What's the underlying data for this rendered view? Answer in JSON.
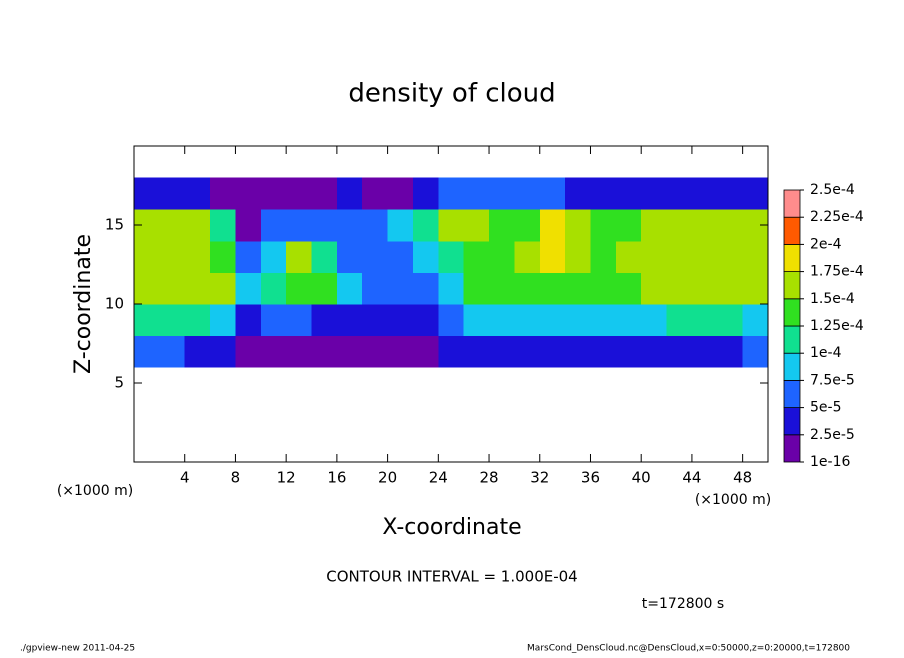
{
  "chart_data": {
    "type": "heatmap",
    "title": "density of cloud",
    "xlabel": "X-coordinate",
    "ylabel": "Z-coordinate",
    "xunit": "(×1000 m)",
    "yunit": "(×1000 m)",
    "annotation": "CONTOUR INTERVAL = 1.000E-04",
    "time_label": "t=172800 s",
    "footer_left": "./gpview-new  2011-04-25",
    "footer_right": "MarsCond_DensCloud.nc@DensCloud,x=0:50000,z=0:20000,t=172800",
    "xlim": [
      0,
      50
    ],
    "ylim": [
      0,
      20
    ],
    "xticks": [
      4,
      8,
      12,
      16,
      20,
      24,
      28,
      32,
      36,
      40,
      44,
      48
    ],
    "yticks": [
      5,
      10,
      15
    ],
    "x": [
      1,
      3,
      5,
      7,
      9,
      11,
      13,
      15,
      17,
      19,
      21,
      23,
      25,
      27,
      29,
      31,
      33,
      35,
      37,
      39,
      41,
      43,
      45,
      47,
      49
    ],
    "y": [
      7,
      9,
      11,
      13,
      15,
      17
    ],
    "z_values": [
      [
        5e-05,
        5e-05,
        4e-05,
        4e-05,
        2e-05,
        2e-05,
        1e-05,
        1e-05,
        1e-05,
        1e-05,
        1e-05,
        2e-05,
        3e-05,
        4e-05,
        4e-05,
        4e-05,
        4e-05,
        4e-05,
        4e-05,
        4e-05,
        4e-05,
        4e-05,
        4e-05,
        4e-05,
        5e-05
      ],
      [
        0.00011,
        0.000105,
        0.0001,
        9e-05,
        3e-05,
        6e-05,
        5e-05,
        4e-05,
        3e-05,
        4e-05,
        3e-05,
        3e-05,
        6e-05,
        9e-05,
        9e-05,
        8e-05,
        8e-05,
        9e-05,
        9e-05,
        9e-05,
        9e-05,
        0.0001,
        0.0001,
        0.0001,
        9e-05
      ],
      [
        0.00016,
        0.00016,
        0.00016,
        0.00015,
        8e-05,
        0.00012,
        0.00014,
        0.00013,
        8e-05,
        5e-05,
        5e-05,
        6e-05,
        9e-05,
        0.00013,
        0.00014,
        0.00014,
        0.00014,
        0.00014,
        0.00014,
        0.00014,
        0.00015,
        0.00016,
        0.00016,
        0.00016,
        0.00015
      ],
      [
        0.000165,
        0.000165,
        0.00016,
        0.00014,
        5e-05,
        8e-05,
        0.00016,
        0.00012,
        6e-05,
        6e-05,
        7e-05,
        8e-05,
        0.00011,
        0.00014,
        0.000145,
        0.00015,
        0.00018,
        0.00015,
        0.000145,
        0.00015,
        0.00016,
        0.000165,
        0.00017,
        0.000165,
        0.00016
      ],
      [
        0.00016,
        0.00016,
        0.00015,
        0.00012,
        2e-05,
        5e-05,
        6e-05,
        5e-05,
        7e-05,
        6e-05,
        8e-05,
        0.00012,
        0.00015,
        0.00015,
        0.00014,
        0.00014,
        0.00019,
        0.00015,
        0.00013,
        0.00014,
        0.00015,
        0.00016,
        0.00016,
        0.00016,
        0.00015
      ],
      [
        4e-05,
        4e-05,
        3e-05,
        2e-05,
        1e-05,
        1e-05,
        1e-05,
        2e-05,
        3e-05,
        2e-05,
        2e-05,
        3e-05,
        5e-05,
        7e-05,
        6e-05,
        5e-05,
        5e-05,
        4e-05,
        4e-05,
        4e-05,
        4e-05,
        4e-05,
        4e-05,
        4e-05,
        4e-05
      ]
    ],
    "colorbar_ticks": [
      {
        "value": 1e-16,
        "label": "1e-16"
      },
      {
        "value": 2.5e-05,
        "label": "2.5e-5"
      },
      {
        "value": 5e-05,
        "label": "5e-5"
      },
      {
        "value": 7.5e-05,
        "label": "7.5e-5"
      },
      {
        "value": 0.0001,
        "label": "1e-4"
      },
      {
        "value": 0.000125,
        "label": "1.25e-4"
      },
      {
        "value": 0.00015,
        "label": "1.5e-4"
      },
      {
        "value": 0.000175,
        "label": "1.75e-4"
      },
      {
        "value": 0.0002,
        "label": "2e-4"
      },
      {
        "value": 0.000225,
        "label": "2.25e-4"
      },
      {
        "value": 0.00025,
        "label": "2.5e-4"
      }
    ],
    "colors": [
      "#6a00a8",
      "#1a10d8",
      "#1e64ff",
      "#14c8f0",
      "#10e090",
      "#30e020",
      "#a8e000",
      "#f0e000",
      "#ff5a00",
      "#ff8c8c"
    ]
  }
}
